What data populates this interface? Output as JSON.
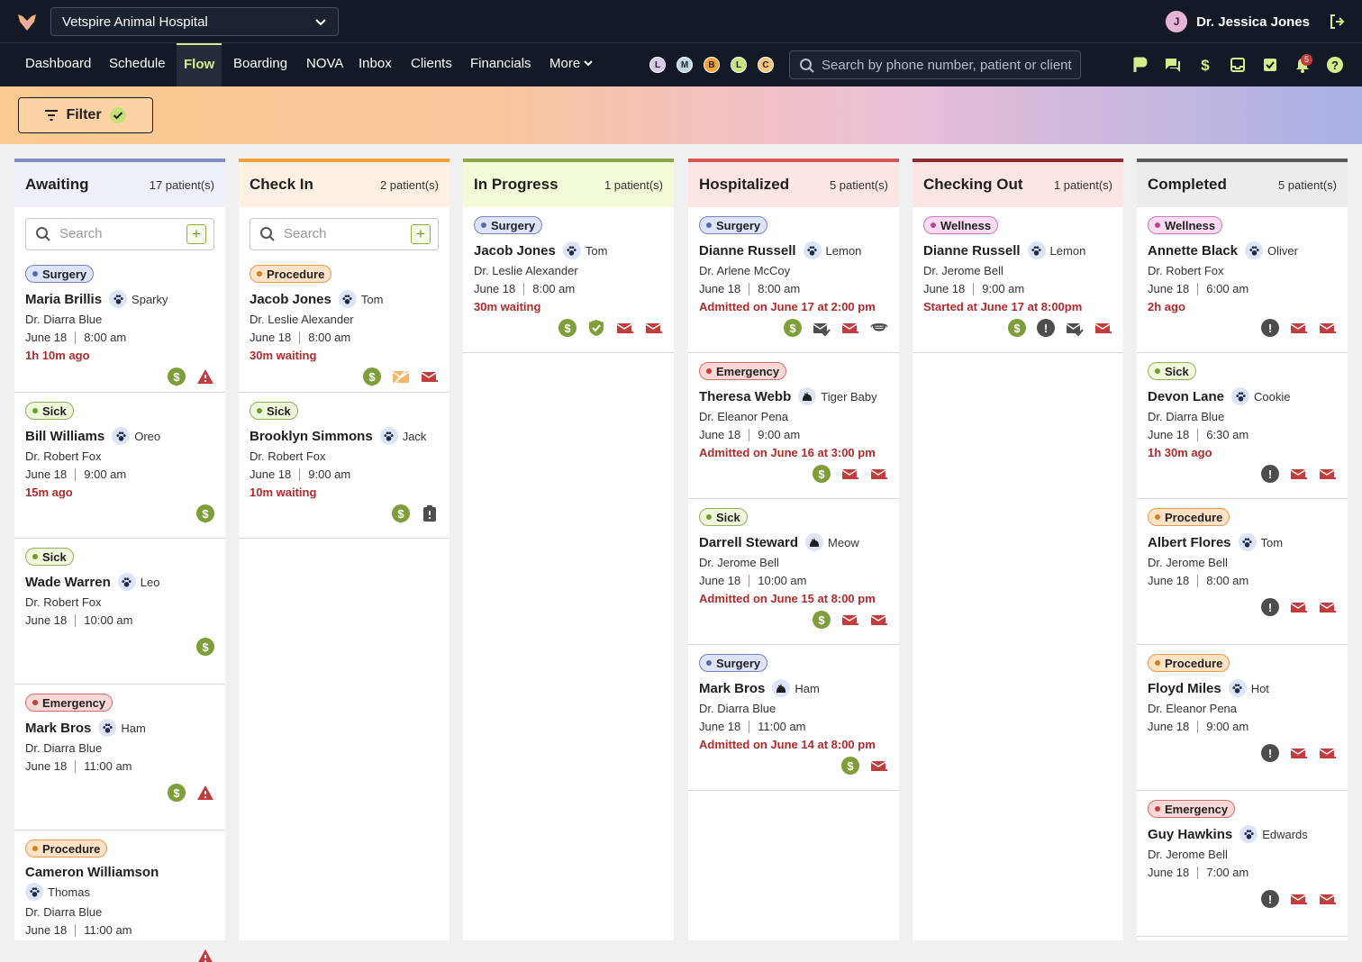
{
  "topbar": {
    "hospital": "Vetspire Animal Hospital",
    "user_initial": "J",
    "user_name": "Dr. Jessica Jones"
  },
  "nav": {
    "items": [
      "Dashboard",
      "Schedule",
      "Flow",
      "Boarding",
      "NOVA",
      "Inbox",
      "Clients",
      "Financials",
      "More"
    ],
    "active": "Flow",
    "circles": [
      {
        "label": "L",
        "color": "#d6c7e8"
      },
      {
        "label": "M",
        "color": "#bcd6ea"
      },
      {
        "label": "B",
        "color": "#f3a13b"
      },
      {
        "label": "L",
        "color": "#c9e27b"
      },
      {
        "label": "C",
        "color": "#f9c57d"
      }
    ],
    "search_placeholder": "Search by phone number, patient or client",
    "notification_count": "5"
  },
  "filter": {
    "label": "Filter"
  },
  "column_search_placeholder": "Search",
  "colors": {
    "accent": "#d4ee8c",
    "money": "#7e9e3a",
    "alert": "#b02a2a"
  },
  "columns": [
    {
      "title": "Awaiting",
      "count": "17 patient(s)",
      "color": "#7f8bc4",
      "head_bg": "#eef0fa",
      "has_search": true,
      "cards": [
        {
          "type": "Surgery",
          "client": "Maria Brillis",
          "pet": "Sparky",
          "doctor": "Dr. Diarra Blue",
          "date": "June 18",
          "time": "8:00 am",
          "alert": "1h 10m ago",
          "icons": [
            "dollar",
            "warning"
          ]
        },
        {
          "type": "Sick",
          "client": "Bill Williams",
          "pet": "Oreo",
          "doctor": "Dr. Robert Fox",
          "date": "June 18",
          "time": "9:00 am",
          "alert": "15m ago",
          "icons": [
            "dollar"
          ]
        },
        {
          "type": "Sick",
          "client": "Wade Warren",
          "pet": "Leo",
          "doctor": "Dr. Robert Fox",
          "date": "June 18",
          "time": "10:00 am",
          "alert": "",
          "icons": [
            "dollar"
          ]
        },
        {
          "type": "Emergency",
          "client": "Mark Bros",
          "pet": "Ham",
          "doctor": "Dr. Diarra Blue",
          "date": "June 18",
          "time": "11:00 am",
          "alert": "",
          "icons": [
            "dollar",
            "warning"
          ]
        },
        {
          "type": "Procedure",
          "client": "Cameron Williamson",
          "pet": "Thomas",
          "doctor": "Dr. Diarra Blue",
          "date": "June 18",
          "time": "11:00 am",
          "alert": "",
          "icons": [
            "warning"
          ],
          "wrap": true
        }
      ]
    },
    {
      "title": "Check In",
      "count": "2 patient(s)",
      "color": "#f3a03f",
      "head_bg": "#fef1e3",
      "has_search": true,
      "cards": [
        {
          "type": "Procedure",
          "client": "Jacob Jones",
          "pet": "Tom",
          "doctor": "Dr. Leslie Alexander",
          "date": "June 18",
          "time": "8:00 am",
          "alert": "30m waiting",
          "icons": [
            "dollar",
            "mail-off",
            "mail"
          ]
        },
        {
          "type": "Sick",
          "client": "Brooklyn Simmons",
          "pet": "Jack",
          "doctor": "Dr. Robert Fox",
          "date": "June 18",
          "time": "9:00 am",
          "alert": "10m waiting",
          "icons": [
            "dollar",
            "clipboard"
          ]
        }
      ]
    },
    {
      "title": "In Progress",
      "count": "1 patient(s)",
      "color": "#8ea84e",
      "head_bg": "#f1fbd8",
      "has_search": false,
      "cards": [
        {
          "type": "Surgery",
          "client": "Jacob Jones",
          "pet": "Tom",
          "doctor": "Dr. Leslie Alexander",
          "date": "June 18",
          "time": "8:00 am",
          "alert": "30m waiting",
          "icons": [
            "dollar",
            "shield",
            "mail",
            "mail"
          ]
        }
      ]
    },
    {
      "title": "Hospitalized",
      "count": "5 patient(s)",
      "color": "#d45656",
      "head_bg": "#fbe5e5",
      "has_search": false,
      "cards": [
        {
          "type": "Surgery",
          "client": "Dianne Russell",
          "pet": "Lemon",
          "doctor": "Dr. Arlene McCoy",
          "date": "June 18",
          "time": "8:00 am",
          "alert": "Admitted on June 17 at 2:00 pm",
          "icons": [
            "dollar",
            "check-mail",
            "mail",
            "mask"
          ]
        },
        {
          "type": "Emergency",
          "client": "Theresa Webb",
          "pet": "Tiger Baby",
          "pet_cat": true,
          "doctor": "Dr. Eleanor Pena",
          "date": "June 18",
          "time": "9:00 am",
          "alert": "Admitted on June 16 at 3:00 pm",
          "icons": [
            "dollar",
            "mail",
            "mail"
          ]
        },
        {
          "type": "Sick",
          "client": "Darrell Steward",
          "pet": "Meow",
          "pet_cat": true,
          "doctor": "Dr. Jerome Bell",
          "date": "June 18",
          "time": "10:00 am",
          "alert": "Admitted on June 15 at 8:00 pm",
          "icons": [
            "dollar",
            "mail",
            "mail"
          ]
        },
        {
          "type": "Surgery",
          "client": "Mark Bros",
          "pet": "Ham",
          "pet_cat": true,
          "doctor": "Dr. Diarra Blue",
          "date": "June 18",
          "time": "11:00 am",
          "alert": "Admitted on June 14 at 8:00 pm",
          "icons": [
            "dollar",
            "mail"
          ]
        }
      ]
    },
    {
      "title": "Checking Out",
      "count": "1 patient(s)",
      "color": "#8c2c2c",
      "head_bg": "#fbe5e5",
      "has_search": false,
      "cards": [
        {
          "type": "Wellness",
          "client": "Dianne Russell",
          "pet": "Lemon",
          "doctor": "Dr. Jerome Bell",
          "date": "June 18",
          "time": "9:00 am",
          "alert": "Started at June 17 at 8:00pm",
          "icons": [
            "dollar",
            "excl",
            "check-mail",
            "mail"
          ]
        }
      ]
    },
    {
      "title": "Completed",
      "count": "5 patient(s)",
      "color": "#5a5a5a",
      "head_bg": "#ececec",
      "has_search": false,
      "cards": [
        {
          "type": "Wellness",
          "client": "Annette Black",
          "pet": "Oliver",
          "doctor": "Dr. Robert Fox",
          "date": "June 18",
          "time": "6:00 am",
          "alert": "2h ago",
          "icons": [
            "excl",
            "mail",
            "mail"
          ]
        },
        {
          "type": "Sick",
          "client": "Devon Lane",
          "pet": "Cookie",
          "doctor": "Dr. Diarra Blue",
          "date": "June 18",
          "time": "6:30 am",
          "alert": "1h 30m ago",
          "icons": [
            "excl",
            "mail",
            "mail"
          ]
        },
        {
          "type": "Procedure",
          "client": "Albert Flores",
          "pet": "Tom",
          "doctor": "Dr. Jerome Bell",
          "date": "June 18",
          "time": "8:00 am",
          "alert": "",
          "icons": [
            "excl",
            "mail",
            "mail"
          ]
        },
        {
          "type": "Procedure",
          "client": "Floyd Miles",
          "pet": "Hot",
          "doctor": "Dr. Eleanor Pena",
          "date": "June 18",
          "time": "9:00 am",
          "alert": "",
          "icons": [
            "excl",
            "mail",
            "mail"
          ]
        },
        {
          "type": "Emergency",
          "client": "Guy Hawkins",
          "pet": "Edwards",
          "doctor": "Dr. Jerome Bell",
          "date": "June 18",
          "time": "7:00 am",
          "alert": "",
          "icons": [
            "excl",
            "mail",
            "mail"
          ]
        }
      ]
    }
  ]
}
